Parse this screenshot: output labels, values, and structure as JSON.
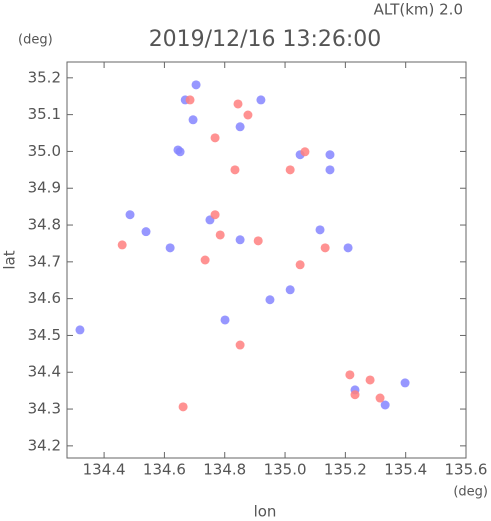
{
  "chart_data": {
    "type": "scatter",
    "title": "2019/12/16 13:26:00",
    "subtitle": "ALT(km) 2.0",
    "x_label": "lon",
    "y_label": "lat",
    "x_unit": "(deg)",
    "y_unit": "(deg)",
    "xlim": [
      134.277,
      135.6
    ],
    "ylim": [
      34.167,
      35.243
    ],
    "xticks": [
      134.4,
      134.6,
      134.8,
      {
        "value": 135,
        "label": "135.0"
      },
      135.2,
      135.4,
      135.6
    ],
    "yticks": [
      34.2,
      34.3,
      34.4,
      34.5,
      34.6,
      34.7,
      34.8,
      34.9,
      {
        "value": 35,
        "label": "35.0"
      },
      35.1,
      35.2
    ],
    "series": [
      {
        "color": "#8585ff",
        "x": [
          134.705,
          134.669,
          134.92,
          134.851,
          134.645,
          134.695,
          135.149,
          135.05,
          135.209,
          134.539,
          134.751,
          134.851,
          135.116,
          134.486,
          135.232,
          135.398,
          135.332,
          134.32,
          135.017,
          134.95,
          134.801,
          134.619,
          135.149,
          134.652
        ],
        "values": [
          35.181,
          35.14,
          35.14,
          35.067,
          35.004,
          35.086,
          34.991,
          34.991,
          34.738,
          34.782,
          34.814,
          34.76,
          34.787,
          34.828,
          34.352,
          34.371,
          34.311,
          34.515,
          34.624,
          34.597,
          34.542,
          34.738,
          34.95,
          34.999
        ]
      },
      {
        "color": "#ff7f7f",
        "x": [
          134.844,
          134.877,
          134.768,
          135.017,
          135.066,
          134.46,
          134.662,
          135.215,
          135.282,
          135.232,
          135.315,
          134.911,
          134.785,
          135.05,
          134.851,
          134.685,
          134.834,
          134.735,
          135.133,
          134.768
        ],
        "values": [
          35.129,
          35.099,
          35.037,
          34.95,
          34.999,
          34.746,
          34.306,
          34.393,
          34.379,
          34.339,
          34.33,
          34.757,
          34.773,
          34.692,
          34.474,
          35.14,
          34.95,
          34.705,
          34.738,
          34.828
        ]
      }
    ]
  }
}
